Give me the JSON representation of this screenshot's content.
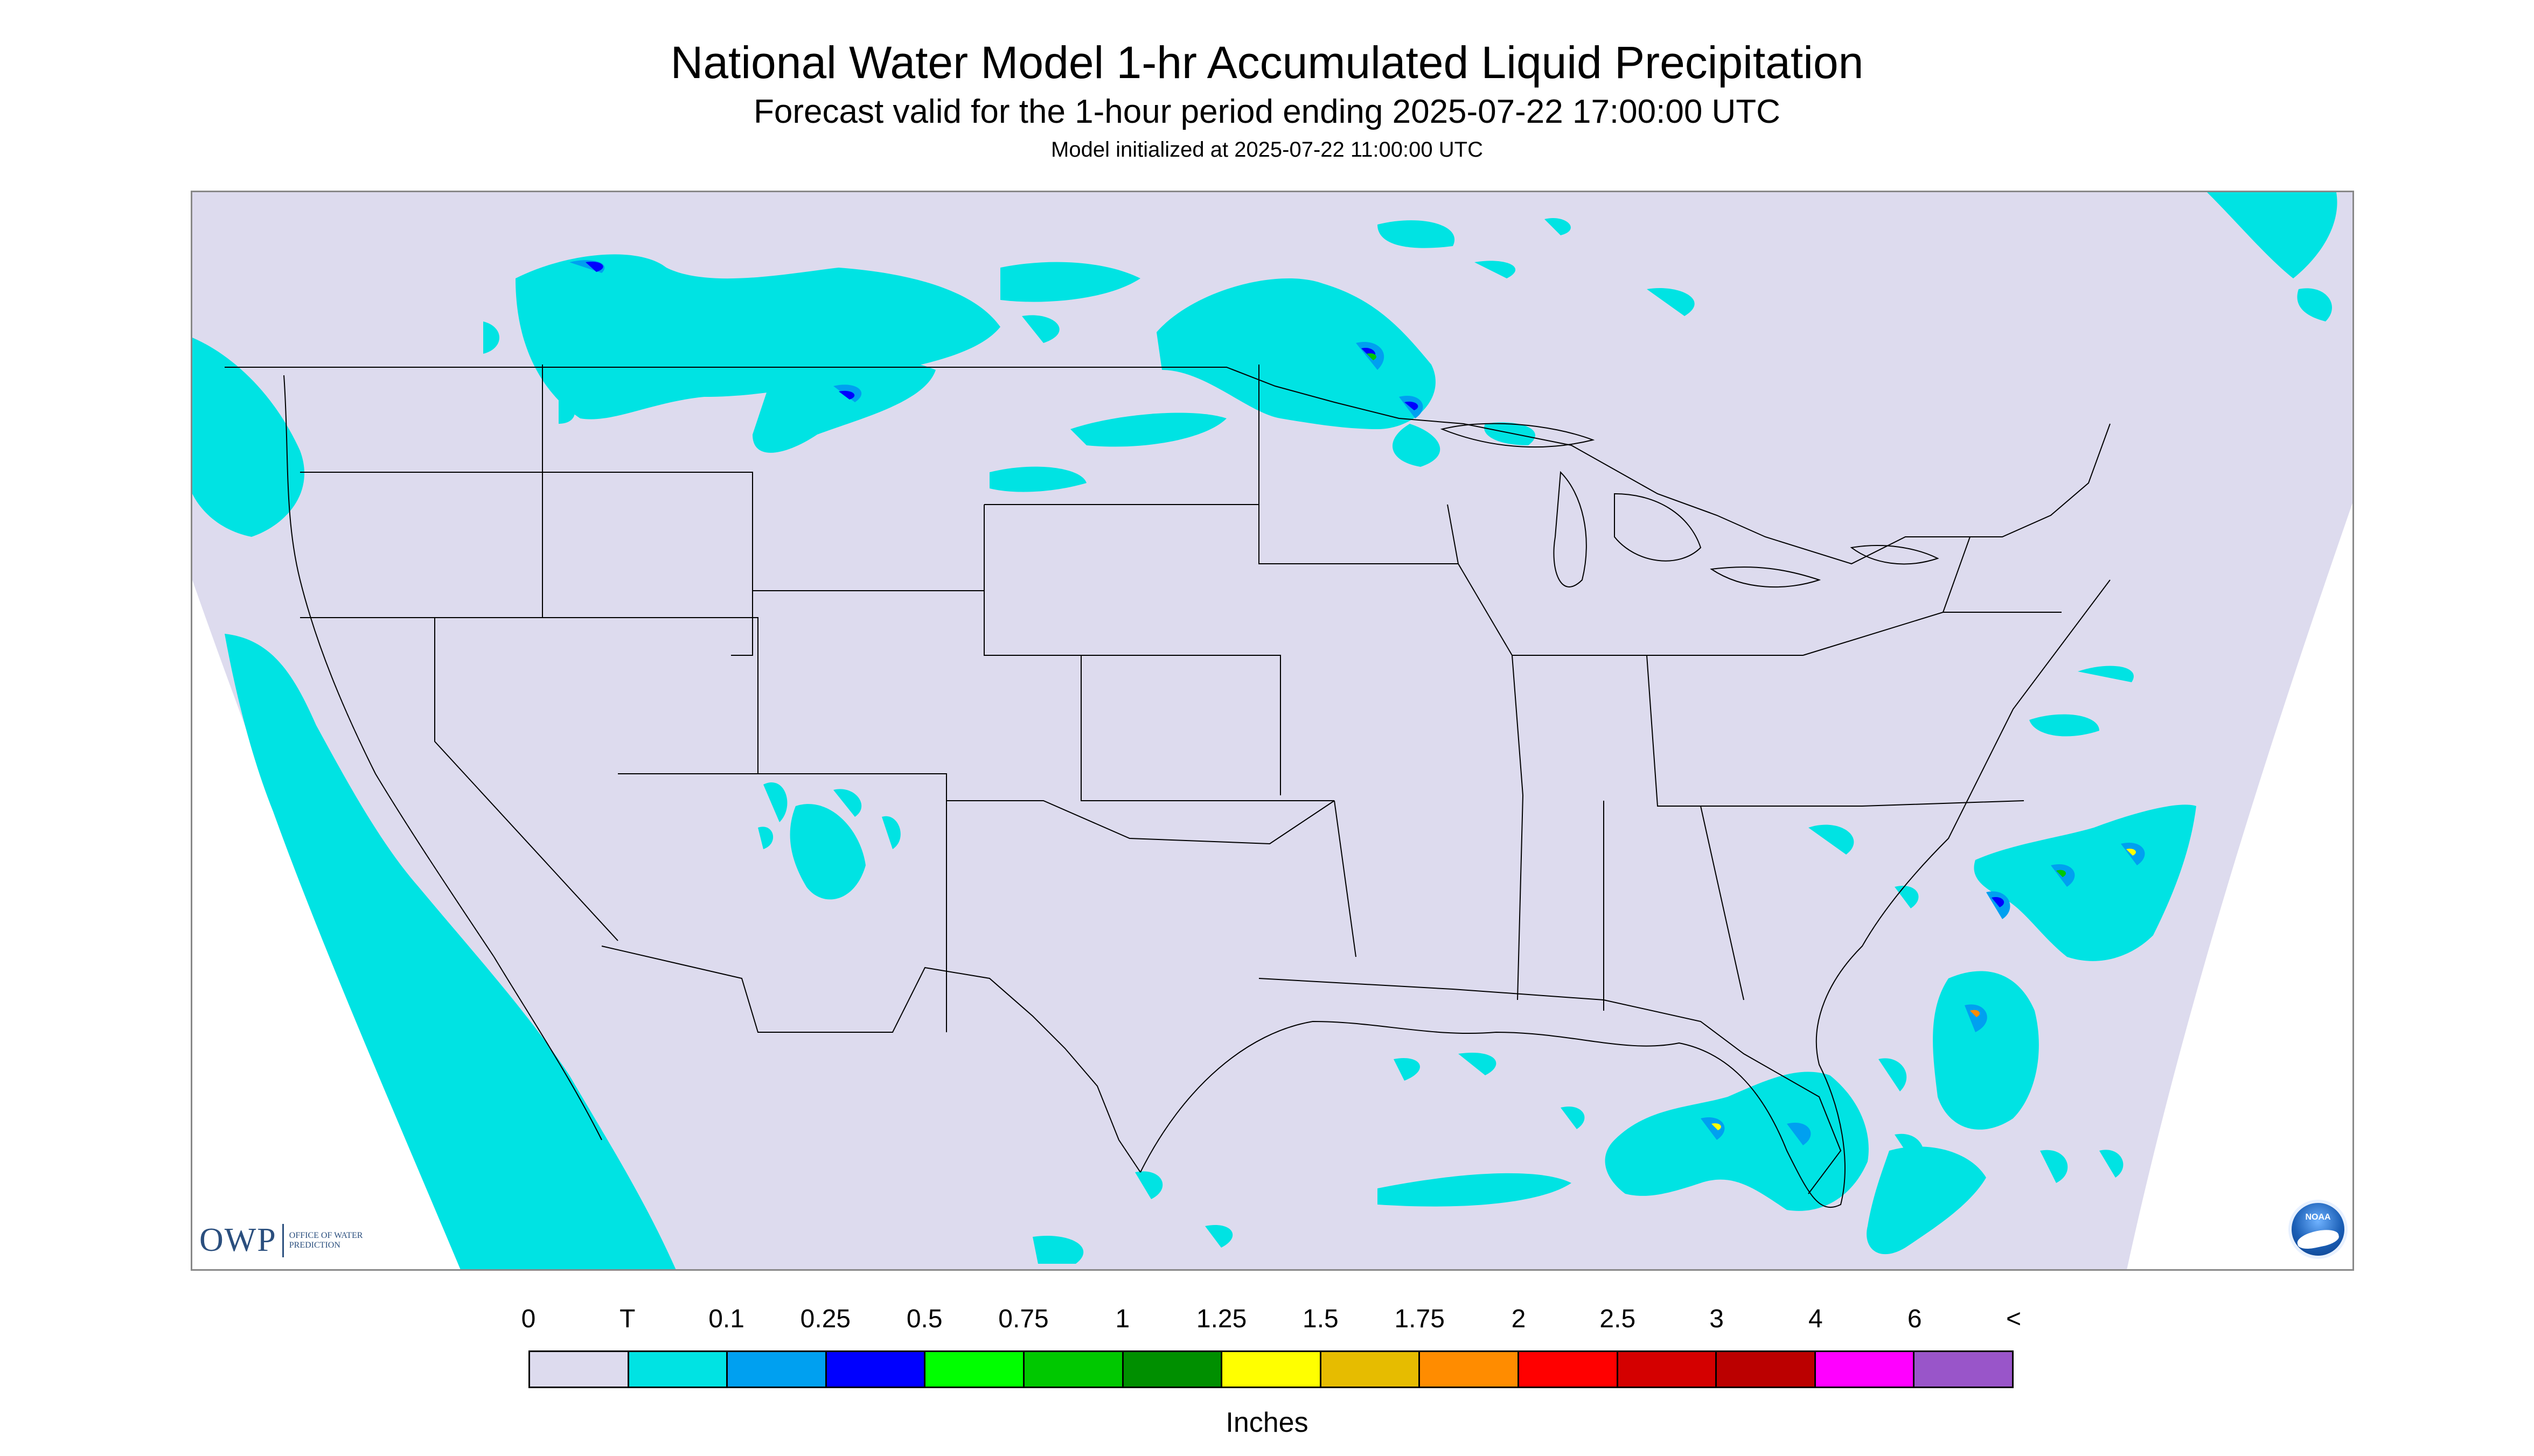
{
  "title": "National Water Model 1-hr Accumulated Liquid Precipitation",
  "subtitle": "Forecast valid for the 1-hour period ending 2025-07-22 17:00:00 UTC",
  "init_text": "Model initialized at 2025-07-22 11:00:00 UTC",
  "logo_owp": {
    "mark": "OWP",
    "subtext": "OFFICE OF WATER PREDICTION"
  },
  "logo_noaa": {
    "text": "NOAA"
  },
  "legend": {
    "units": "Inches",
    "labels": [
      "0",
      "T",
      "0.1",
      "0.25",
      "0.5",
      "0.75",
      "1",
      "1.25",
      "1.5",
      "1.75",
      "2",
      "2.5",
      "3",
      "4",
      "6",
      "<"
    ],
    "colors": [
      "#dddbee",
      "#00e3e3",
      "#00a0f0",
      "#0000ff",
      "#00ff00",
      "#00c800",
      "#008f00",
      "#ffff00",
      "#e6bc00",
      "#ff8c00",
      "#ff0000",
      "#d40000",
      "#bb0000",
      "#ff00ff",
      "#9955c9"
    ]
  },
  "colors": {
    "background": "#dddbee",
    "outside": "#ffffff",
    "boundary": "#000000",
    "trace": "#00e3e3",
    "light": "#00a0f0",
    "moderate": "#0000ff",
    "heavy": "#00c800",
    "very_heavy": "#ffff00",
    "extreme": "#ff8c00"
  }
}
